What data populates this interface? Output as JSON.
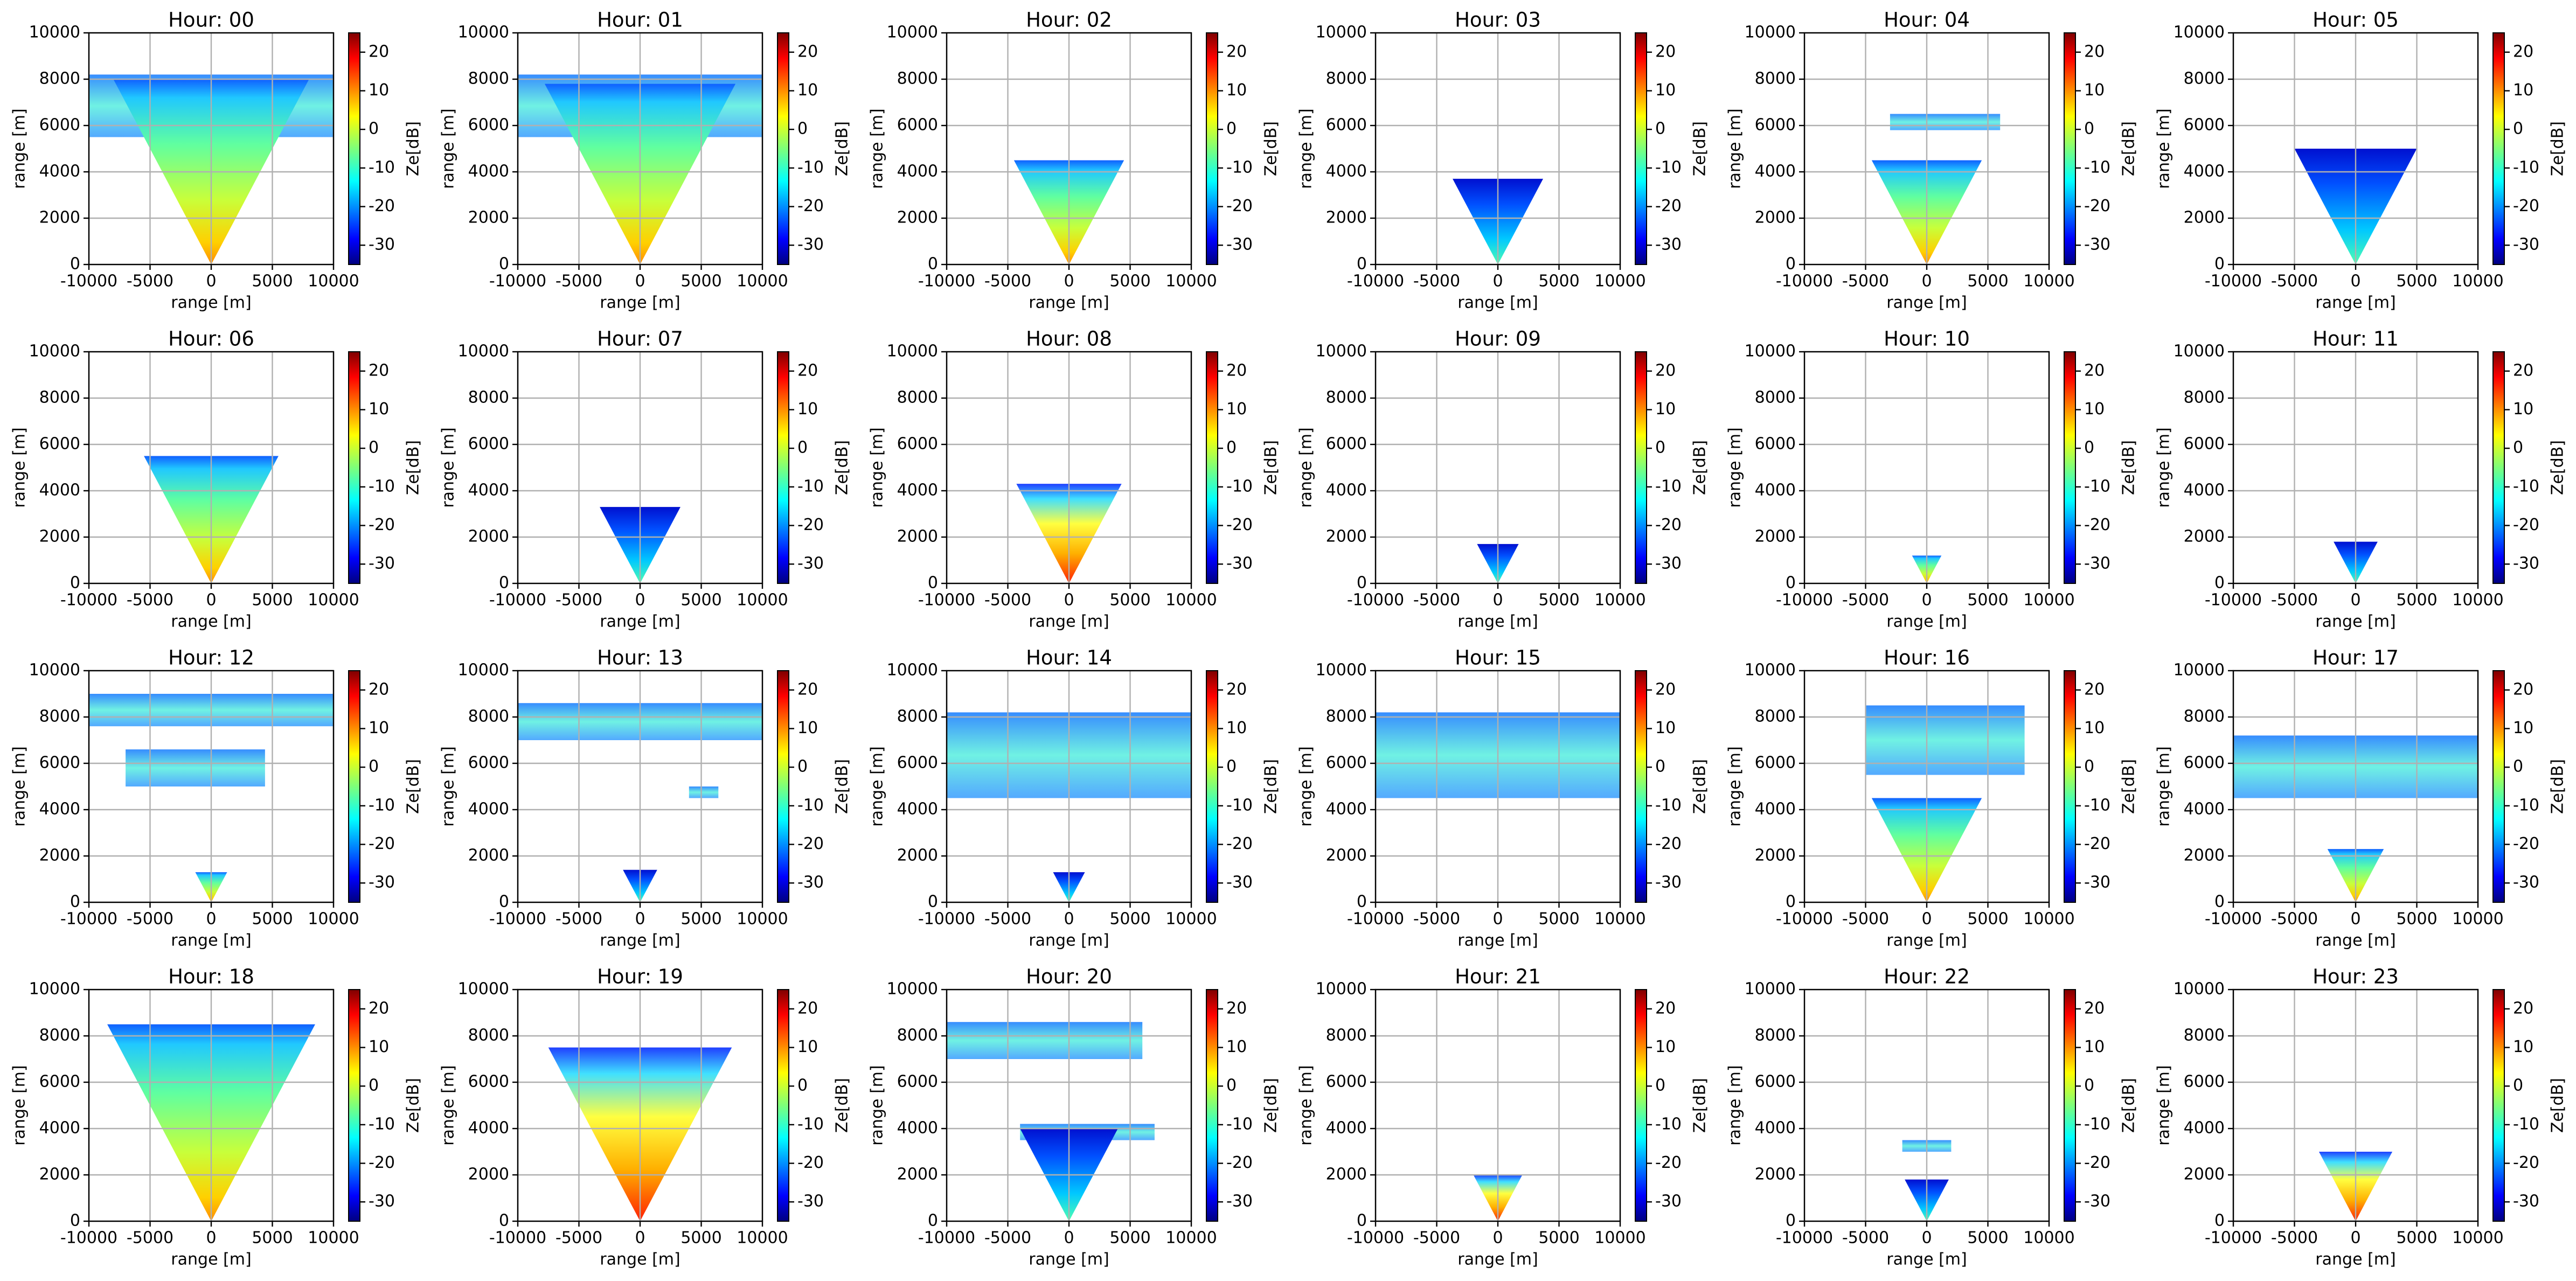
{
  "chart_data": [
    {
      "type": "heatmap",
      "title": "Hour: 00",
      "xlabel": "range [m]",
      "ylabel": "range [m]",
      "xlim": [
        -10000,
        10000
      ],
      "ylim": [
        0,
        10000
      ],
      "xticks": [
        -10000,
        -5000,
        0,
        5000,
        10000
      ],
      "yticks": [
        0,
        2000,
        4000,
        6000,
        8000,
        10000
      ],
      "grid": true,
      "colormap": "jet",
      "colorbar": {
        "label": "Ze[dB]",
        "lim": [
          -35,
          25
        ],
        "ticks": [
          -30,
          -20,
          -10,
          0,
          10,
          20
        ]
      }
    },
    {
      "type": "heatmap",
      "title": "Hour: 01",
      "xlabel": "range [m]",
      "ylabel": "range [m]",
      "xlim": [
        -10000,
        10000
      ],
      "ylim": [
        0,
        10000
      ],
      "xticks": [
        -10000,
        -5000,
        0,
        5000,
        10000
      ],
      "yticks": [
        0,
        2000,
        4000,
        6000,
        8000,
        10000
      ],
      "grid": true,
      "colormap": "jet",
      "colorbar": {
        "label": "Ze[dB]",
        "lim": [
          -35,
          25
        ],
        "ticks": [
          -30,
          -20,
          -10,
          0,
          10,
          20
        ]
      }
    },
    {
      "type": "heatmap",
      "title": "Hour: 02",
      "xlabel": "range [m]",
      "ylabel": "range [m]",
      "xlim": [
        -10000,
        10000
      ],
      "ylim": [
        0,
        10000
      ],
      "xticks": [
        -10000,
        -5000,
        0,
        5000,
        10000
      ],
      "yticks": [
        0,
        2000,
        4000,
        6000,
        8000,
        10000
      ],
      "grid": true,
      "colormap": "jet",
      "colorbar": {
        "label": "Ze[dB]",
        "lim": [
          -35,
          25
        ],
        "ticks": [
          -30,
          -20,
          -10,
          0,
          10,
          20
        ]
      }
    },
    {
      "type": "heatmap",
      "title": "Hour: 03",
      "xlabel": "range [m]",
      "ylabel": "range [m]",
      "xlim": [
        -10000,
        10000
      ],
      "ylim": [
        0,
        10000
      ],
      "xticks": [
        -10000,
        -5000,
        0,
        5000,
        10000
      ],
      "yticks": [
        0,
        2000,
        4000,
        6000,
        8000,
        10000
      ],
      "grid": true,
      "colormap": "jet",
      "colorbar": {
        "label": "Ze[dB]",
        "lim": [
          -35,
          25
        ],
        "ticks": [
          -30,
          -20,
          -10,
          0,
          10,
          20
        ]
      }
    },
    {
      "type": "heatmap",
      "title": "Hour: 04",
      "xlabel": "range [m]",
      "ylabel": "range [m]",
      "xlim": [
        -10000,
        10000
      ],
      "ylim": [
        0,
        10000
      ],
      "xticks": [
        -10000,
        -5000,
        0,
        5000,
        10000
      ],
      "yticks": [
        0,
        2000,
        4000,
        6000,
        8000,
        10000
      ],
      "grid": true,
      "colormap": "jet",
      "colorbar": {
        "label": "Ze[dB]",
        "lim": [
          -35,
          25
        ],
        "ticks": [
          -30,
          -20,
          -10,
          0,
          10,
          20
        ]
      }
    },
    {
      "type": "heatmap",
      "title": "Hour: 05",
      "xlabel": "range [m]",
      "ylabel": "range [m]",
      "xlim": [
        -10000,
        10000
      ],
      "ylim": [
        0,
        10000
      ],
      "xticks": [
        -10000,
        -5000,
        0,
        5000,
        10000
      ],
      "yticks": [
        0,
        2000,
        4000,
        6000,
        8000,
        10000
      ],
      "grid": true,
      "colormap": "jet",
      "colorbar": {
        "label": "Ze[dB]",
        "lim": [
          -35,
          25
        ],
        "ticks": [
          -30,
          -20,
          -10,
          0,
          10,
          20
        ]
      }
    },
    {
      "type": "heatmap",
      "title": "Hour: 06",
      "xlabel": "range [m]",
      "ylabel": "range [m]",
      "xlim": [
        -10000,
        10000
      ],
      "ylim": [
        0,
        10000
      ],
      "xticks": [
        -10000,
        -5000,
        0,
        5000,
        10000
      ],
      "yticks": [
        0,
        2000,
        4000,
        6000,
        8000,
        10000
      ],
      "grid": true,
      "colormap": "jet",
      "colorbar": {
        "label": "Ze[dB]",
        "lim": [
          -35,
          25
        ],
        "ticks": [
          -30,
          -20,
          -10,
          0,
          10,
          20
        ]
      }
    },
    {
      "type": "heatmap",
      "title": "Hour: 07",
      "xlabel": "range [m]",
      "ylabel": "range [m]",
      "xlim": [
        -10000,
        10000
      ],
      "ylim": [
        0,
        10000
      ],
      "xticks": [
        -10000,
        -5000,
        0,
        5000,
        10000
      ],
      "yticks": [
        0,
        2000,
        4000,
        6000,
        8000,
        10000
      ],
      "grid": true,
      "colormap": "jet",
      "colorbar": {
        "label": "Ze[dB]",
        "lim": [
          -35,
          25
        ],
        "ticks": [
          -30,
          -20,
          -10,
          0,
          10,
          20
        ]
      }
    },
    {
      "type": "heatmap",
      "title": "Hour: 08",
      "xlabel": "range [m]",
      "ylabel": "range [m]",
      "xlim": [
        -10000,
        10000
      ],
      "ylim": [
        0,
        10000
      ],
      "xticks": [
        -10000,
        -5000,
        0,
        5000,
        10000
      ],
      "yticks": [
        0,
        2000,
        4000,
        6000,
        8000,
        10000
      ],
      "grid": true,
      "colormap": "jet",
      "colorbar": {
        "label": "Ze[dB]",
        "lim": [
          -35,
          25
        ],
        "ticks": [
          -30,
          -20,
          -10,
          0,
          10,
          20
        ]
      }
    },
    {
      "type": "heatmap",
      "title": "Hour: 09",
      "xlabel": "range [m]",
      "ylabel": "range [m]",
      "xlim": [
        -10000,
        10000
      ],
      "ylim": [
        0,
        10000
      ],
      "xticks": [
        -10000,
        -5000,
        0,
        5000,
        10000
      ],
      "yticks": [
        0,
        2000,
        4000,
        6000,
        8000,
        10000
      ],
      "grid": true,
      "colormap": "jet",
      "colorbar": {
        "label": "Ze[dB]",
        "lim": [
          -35,
          25
        ],
        "ticks": [
          -30,
          -20,
          -10,
          0,
          10,
          20
        ]
      }
    },
    {
      "type": "heatmap",
      "title": "Hour: 10",
      "xlabel": "range [m]",
      "ylabel": "range [m]",
      "xlim": [
        -10000,
        10000
      ],
      "ylim": [
        0,
        10000
      ],
      "xticks": [
        -10000,
        -5000,
        0,
        5000,
        10000
      ],
      "yticks": [
        0,
        2000,
        4000,
        6000,
        8000,
        10000
      ],
      "grid": true,
      "colormap": "jet",
      "colorbar": {
        "label": "Ze[dB]",
        "lim": [
          -35,
          25
        ],
        "ticks": [
          -30,
          -20,
          -10,
          0,
          10,
          20
        ]
      }
    },
    {
      "type": "heatmap",
      "title": "Hour: 11",
      "xlabel": "range [m]",
      "ylabel": "range [m]",
      "xlim": [
        -10000,
        10000
      ],
      "ylim": [
        0,
        10000
      ],
      "xticks": [
        -10000,
        -5000,
        0,
        5000,
        10000
      ],
      "yticks": [
        0,
        2000,
        4000,
        6000,
        8000,
        10000
      ],
      "grid": true,
      "colormap": "jet",
      "colorbar": {
        "label": "Ze[dB]",
        "lim": [
          -35,
          25
        ],
        "ticks": [
          -30,
          -20,
          -10,
          0,
          10,
          20
        ]
      }
    },
    {
      "type": "heatmap",
      "title": "Hour: 12",
      "xlabel": "range [m]",
      "ylabel": "range [m]",
      "xlim": [
        -10000,
        10000
      ],
      "ylim": [
        0,
        10000
      ],
      "xticks": [
        -10000,
        -5000,
        0,
        5000,
        10000
      ],
      "yticks": [
        0,
        2000,
        4000,
        6000,
        8000,
        10000
      ],
      "grid": true,
      "colormap": "jet",
      "colorbar": {
        "label": "Ze[dB]",
        "lim": [
          -35,
          25
        ],
        "ticks": [
          -30,
          -20,
          -10,
          0,
          10,
          20
        ]
      }
    },
    {
      "type": "heatmap",
      "title": "Hour: 13",
      "xlabel": "range [m]",
      "ylabel": "range [m]",
      "xlim": [
        -10000,
        10000
      ],
      "ylim": [
        0,
        10000
      ],
      "xticks": [
        -10000,
        -5000,
        0,
        5000,
        10000
      ],
      "yticks": [
        0,
        2000,
        4000,
        6000,
        8000,
        10000
      ],
      "grid": true,
      "colormap": "jet",
      "colorbar": {
        "label": "Ze[dB]",
        "lim": [
          -35,
          25
        ],
        "ticks": [
          -30,
          -20,
          -10,
          0,
          10,
          20
        ]
      }
    },
    {
      "type": "heatmap",
      "title": "Hour: 14",
      "xlabel": "range [m]",
      "ylabel": "range [m]",
      "xlim": [
        -10000,
        10000
      ],
      "ylim": [
        0,
        10000
      ],
      "xticks": [
        -10000,
        -5000,
        0,
        5000,
        10000
      ],
      "yticks": [
        0,
        2000,
        4000,
        6000,
        8000,
        10000
      ],
      "grid": true,
      "colormap": "jet",
      "colorbar": {
        "label": "Ze[dB]",
        "lim": [
          -35,
          25
        ],
        "ticks": [
          -30,
          -20,
          -10,
          0,
          10,
          20
        ]
      }
    },
    {
      "type": "heatmap",
      "title": "Hour: 15",
      "xlabel": "range [m]",
      "ylabel": "range [m]",
      "xlim": [
        -10000,
        10000
      ],
      "ylim": [
        0,
        10000
      ],
      "xticks": [
        -10000,
        -5000,
        0,
        5000,
        10000
      ],
      "yticks": [
        0,
        2000,
        4000,
        6000,
        8000,
        10000
      ],
      "grid": true,
      "colormap": "jet",
      "colorbar": {
        "label": "Ze[dB]",
        "lim": [
          -35,
          25
        ],
        "ticks": [
          -30,
          -20,
          -10,
          0,
          10,
          20
        ]
      }
    },
    {
      "type": "heatmap",
      "title": "Hour: 16",
      "xlabel": "range [m]",
      "ylabel": "range [m]",
      "xlim": [
        -10000,
        10000
      ],
      "ylim": [
        0,
        10000
      ],
      "xticks": [
        -10000,
        -5000,
        0,
        5000,
        10000
      ],
      "yticks": [
        0,
        2000,
        4000,
        6000,
        8000,
        10000
      ],
      "grid": true,
      "colormap": "jet",
      "colorbar": {
        "label": "Ze[dB]",
        "lim": [
          -35,
          25
        ],
        "ticks": [
          -30,
          -20,
          -10,
          0,
          10,
          20
        ]
      }
    },
    {
      "type": "heatmap",
      "title": "Hour: 17",
      "xlabel": "range [m]",
      "ylabel": "range [m]",
      "xlim": [
        -10000,
        10000
      ],
      "ylim": [
        0,
        10000
      ],
      "xticks": [
        -10000,
        -5000,
        0,
        5000,
        10000
      ],
      "yticks": [
        0,
        2000,
        4000,
        6000,
        8000,
        10000
      ],
      "grid": true,
      "colormap": "jet",
      "colorbar": {
        "label": "Ze[dB]",
        "lim": [
          -35,
          25
        ],
        "ticks": [
          -30,
          -20,
          -10,
          0,
          10,
          20
        ]
      }
    },
    {
      "type": "heatmap",
      "title": "Hour: 18",
      "xlabel": "range [m]",
      "ylabel": "range [m]",
      "xlim": [
        -10000,
        10000
      ],
      "ylim": [
        0,
        10000
      ],
      "xticks": [
        -10000,
        -5000,
        0,
        5000,
        10000
      ],
      "yticks": [
        0,
        2000,
        4000,
        6000,
        8000,
        10000
      ],
      "grid": true,
      "colormap": "jet",
      "colorbar": {
        "label": "Ze[dB]",
        "lim": [
          -35,
          25
        ],
        "ticks": [
          -30,
          -20,
          -10,
          0,
          10,
          20
        ]
      }
    },
    {
      "type": "heatmap",
      "title": "Hour: 19",
      "xlabel": "range [m]",
      "ylabel": "range [m]",
      "xlim": [
        -10000,
        10000
      ],
      "ylim": [
        0,
        10000
      ],
      "xticks": [
        -10000,
        -5000,
        0,
        5000,
        10000
      ],
      "yticks": [
        0,
        2000,
        4000,
        6000,
        8000,
        10000
      ],
      "grid": true,
      "colormap": "jet",
      "colorbar": {
        "label": "Ze[dB]",
        "lim": [
          -35,
          25
        ],
        "ticks": [
          -30,
          -20,
          -10,
          0,
          10,
          20
        ]
      }
    },
    {
      "type": "heatmap",
      "title": "Hour: 20",
      "xlabel": "range [m]",
      "ylabel": "range [m]",
      "xlim": [
        -10000,
        10000
      ],
      "ylim": [
        0,
        10000
      ],
      "xticks": [
        -10000,
        -5000,
        0,
        5000,
        10000
      ],
      "yticks": [
        0,
        2000,
        4000,
        6000,
        8000,
        10000
      ],
      "grid": true,
      "colormap": "jet",
      "colorbar": {
        "label": "Ze[dB]",
        "lim": [
          -35,
          25
        ],
        "ticks": [
          -30,
          -20,
          -10,
          0,
          10,
          20
        ]
      }
    },
    {
      "type": "heatmap",
      "title": "Hour: 21",
      "xlabel": "range [m]",
      "ylabel": "range [m]",
      "xlim": [
        -10000,
        10000
      ],
      "ylim": [
        0,
        10000
      ],
      "xticks": [
        -10000,
        -5000,
        0,
        5000,
        10000
      ],
      "yticks": [
        0,
        2000,
        4000,
        6000,
        8000,
        10000
      ],
      "grid": true,
      "colormap": "jet",
      "colorbar": {
        "label": "Ze[dB]",
        "lim": [
          -35,
          25
        ],
        "ticks": [
          -30,
          -20,
          -10,
          0,
          10,
          20
        ]
      }
    },
    {
      "type": "heatmap",
      "title": "Hour: 22",
      "xlabel": "range [m]",
      "ylabel": "range [m]",
      "xlim": [
        -10000,
        10000
      ],
      "ylim": [
        0,
        10000
      ],
      "xticks": [
        -10000,
        -5000,
        0,
        5000,
        10000
      ],
      "yticks": [
        0,
        2000,
        4000,
        6000,
        8000,
        10000
      ],
      "grid": true,
      "colormap": "jet",
      "colorbar": {
        "label": "Ze[dB]",
        "lim": [
          -35,
          25
        ],
        "ticks": [
          -30,
          -20,
          -10,
          0,
          10,
          20
        ]
      }
    },
    {
      "type": "heatmap",
      "title": "Hour: 23",
      "xlabel": "range [m]",
      "ylabel": "range [m]",
      "xlim": [
        -10000,
        10000
      ],
      "ylim": [
        0,
        10000
      ],
      "xticks": [
        -10000,
        -5000,
        0,
        5000,
        10000
      ],
      "yticks": [
        0,
        2000,
        4000,
        6000,
        8000,
        10000
      ],
      "grid": true,
      "colormap": "jet",
      "colorbar": {
        "label": "Ze[dB]",
        "lim": [
          -35,
          25
        ],
        "ticks": [
          -30,
          -20,
          -10,
          0,
          10,
          20
        ]
      }
    }
  ]
}
